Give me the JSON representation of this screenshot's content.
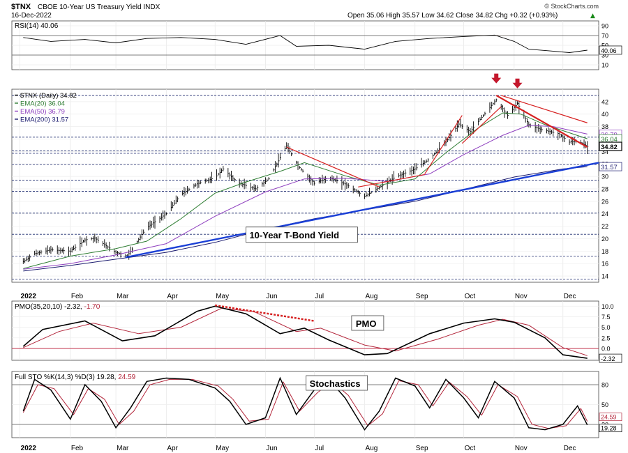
{
  "header": {
    "symbol": "$TNX",
    "description": "CBOE 10-Year US Treasury Yield INDX",
    "date": "16-Dec-2022",
    "ohlc_text": "Open 35.06  High 35.57  Low 34.62  Close 34.82  Chg +0.32 (+0.93%)",
    "change_arrow": "▲",
    "watermark": "© StockCharts.com"
  },
  "colors": {
    "price_bar": "#000000",
    "ema20": "#2e7d32",
    "ema50": "#8e3fbf",
    "ema200": "#1a1a6e",
    "pmo": "#000000",
    "pmo_signal": "#b3263b",
    "sto_k": "#000000",
    "sto_d": "#b3263b",
    "trend_blue": "#1a3fd6",
    "trend_red": "#d62020",
    "arrow": "#c4172c",
    "grid_dashed": "#1c2a6e",
    "rsi_fill": "#9b8a7c"
  },
  "chart_data": [
    {
      "type": "line",
      "panel": "rsi",
      "legend": "RSI(14) 40.06",
      "last_value_label": "40.06",
      "ylim": [
        0,
        100
      ],
      "yticks": [
        10,
        30,
        50,
        70,
        90
      ],
      "series": [
        {
          "name": "RSI(14)",
          "x": [
            "2022-01-03",
            "2022-01-20",
            "2022-02-10",
            "2022-03-01",
            "2022-03-20",
            "2022-04-10",
            "2022-05-01",
            "2022-05-20",
            "2022-06-10",
            "2022-06-20",
            "2022-07-10",
            "2022-08-01",
            "2022-08-20",
            "2022-09-10",
            "2022-10-01",
            "2022-10-20",
            "2022-11-01",
            "2022-11-10",
            "2022-11-25",
            "2022-12-05",
            "2022-12-16"
          ],
          "values": [
            66,
            58,
            62,
            55,
            64,
            66,
            62,
            52,
            70,
            48,
            50,
            42,
            58,
            64,
            68,
            71,
            58,
            42,
            38,
            35,
            40.06
          ]
        }
      ]
    },
    {
      "type": "line",
      "panel": "price",
      "legend": [
        {
          "label": "$TNX (Daily) 34.82",
          "color": "#000000"
        },
        {
          "label": "EMA(20) 36.04",
          "color": "#2e7d32"
        },
        {
          "label": "EMA(50) 36.79",
          "color": "#8e3fbf"
        },
        {
          "label": "EMA(200) 31.57",
          "color": "#1a1a6e"
        }
      ],
      "annotation": "10-Year T-Bond Yield",
      "ylim": [
        13,
        44
      ],
      "yticks": [
        14,
        16,
        18,
        20,
        22,
        24,
        26,
        28,
        30,
        32,
        34,
        36,
        38,
        40,
        42
      ],
      "value_labels": [
        {
          "text": "36.79",
          "value": 36.79,
          "color": "#8e3fbf"
        },
        {
          "text": "36.04",
          "value": 36.04,
          "color": "#2e7d32"
        },
        {
          "text": "34.82",
          "value": 34.82,
          "color": "#000000",
          "bold": true
        },
        {
          "text": "31.57",
          "value": 31.57,
          "color": "#1a1a6e"
        }
      ],
      "horizontal_levels": [
        13.5,
        17.2,
        20.7,
        24.1,
        27.6,
        29.4,
        31.9,
        33.7,
        34.1,
        36.3,
        43.0
      ],
      "series": [
        {
          "name": "$TNX (Daily)",
          "x": [
            "2022-01-03",
            "2022-01-10",
            "2022-01-20",
            "2022-02-01",
            "2022-02-10",
            "2022-02-16",
            "2022-03-01",
            "2022-03-08",
            "2022-03-20",
            "2022-04-01",
            "2022-04-10",
            "2022-04-20",
            "2022-05-01",
            "2022-05-06",
            "2022-05-15",
            "2022-05-26",
            "2022-06-03",
            "2022-06-14",
            "2022-06-22",
            "2022-07-01",
            "2022-07-10",
            "2022-07-20",
            "2022-08-01",
            "2022-08-10",
            "2022-08-20",
            "2022-09-01",
            "2022-09-10",
            "2022-09-20",
            "2022-09-28",
            "2022-10-05",
            "2022-10-14",
            "2022-10-21",
            "2022-10-28",
            "2022-11-03",
            "2022-11-10",
            "2022-11-18",
            "2022-11-28",
            "2022-12-05",
            "2022-12-10",
            "2022-12-16"
          ],
          "values": [
            16.3,
            17.6,
            18.2,
            18.0,
            19.8,
            20.1,
            17.8,
            17.2,
            21.8,
            24.0,
            27.1,
            28.8,
            29.8,
            31.2,
            29.0,
            28.0,
            29.6,
            34.9,
            31.4,
            28.9,
            29.8,
            28.8,
            26.8,
            28.2,
            29.9,
            31.2,
            32.8,
            35.5,
            38.4,
            37.2,
            40.1,
            42.3,
            39.8,
            41.7,
            38.3,
            37.5,
            36.9,
            35.5,
            35.7,
            34.82
          ]
        },
        {
          "name": "EMA(20)",
          "x": [
            "2022-01-03",
            "2022-02-01",
            "2022-03-01",
            "2022-03-20",
            "2022-04-10",
            "2022-05-01",
            "2022-05-20",
            "2022-06-10",
            "2022-06-25",
            "2022-07-20",
            "2022-08-10",
            "2022-09-01",
            "2022-09-20",
            "2022-10-10",
            "2022-10-25",
            "2022-11-05",
            "2022-11-20",
            "2022-12-16"
          ],
          "values": [
            15.2,
            17.2,
            18.4,
            19.6,
            23.2,
            27.3,
            29.1,
            30.8,
            32.2,
            30.1,
            28.6,
            29.6,
            33.8,
            37.8,
            40.2,
            40.0,
            38.3,
            36.04
          ]
        },
        {
          "name": "EMA(50)",
          "x": [
            "2022-01-03",
            "2022-02-01",
            "2022-03-01",
            "2022-04-01",
            "2022-05-01",
            "2022-06-01",
            "2022-06-25",
            "2022-07-20",
            "2022-08-15",
            "2022-09-10",
            "2022-10-01",
            "2022-10-25",
            "2022-11-10",
            "2022-11-25",
            "2022-12-16"
          ],
          "values": [
            15.1,
            16.0,
            17.4,
            19.2,
            23.6,
            27.5,
            29.6,
            29.7,
            29.2,
            30.4,
            33.5,
            36.6,
            38.2,
            38.0,
            36.79
          ]
        },
        {
          "name": "EMA(200)",
          "x": [
            "2022-01-03",
            "2022-02-01",
            "2022-03-01",
            "2022-04-01",
            "2022-05-01",
            "2022-06-01",
            "2022-07-01",
            "2022-08-01",
            "2022-09-01",
            "2022-10-01",
            "2022-11-01",
            "2022-12-01",
            "2022-12-16"
          ],
          "values": [
            14.8,
            15.7,
            16.7,
            17.8,
            19.4,
            21.5,
            23.2,
            24.6,
            26.0,
            27.9,
            29.9,
            31.2,
            31.57
          ]
        }
      ],
      "trendlines": [
        {
          "color": "#1a3fd6",
          "width": 2.4,
          "points": [
            [
              "2022-03-07",
              17.0
            ],
            [
              "2022-12-23",
              32.2
            ]
          ]
        },
        {
          "color": "#d62020",
          "width": 1.2,
          "points": [
            [
              "2022-06-14",
              34.7
            ],
            [
              "2022-08-10",
              28.3
            ]
          ]
        },
        {
          "color": "#d62020",
          "width": 1.2,
          "points": [
            [
              "2022-07-28",
              28.3
            ],
            [
              "2022-09-07",
              30.3
            ]
          ]
        },
        {
          "color": "#d62020",
          "width": 1.2,
          "points": [
            [
              "2022-09-07",
              30.4
            ],
            [
              "2022-09-30",
              39.8
            ]
          ]
        },
        {
          "color": "#d62020",
          "width": 1.2,
          "points": [
            [
              "2022-09-30",
              35.3
            ],
            [
              "2022-10-24",
              41.2
            ]
          ]
        },
        {
          "color": "#d62020",
          "width": 2.2,
          "points": [
            [
              "2022-10-21",
              43.0
            ],
            [
              "2022-12-16",
              34.7
            ]
          ]
        },
        {
          "color": "#d62020",
          "width": 1.2,
          "points": [
            [
              "2022-10-24",
              43.0
            ],
            [
              "2022-12-16",
              38.6
            ]
          ]
        }
      ],
      "arrows": [
        [
          "2022-10-21",
          43.6
        ],
        [
          "2022-11-03",
          42.8
        ]
      ]
    },
    {
      "type": "line",
      "panel": "pmo",
      "legend": "PMO(35,20,10) -2.32, -1.70",
      "annotation": "PMO",
      "last_value_label": "-2.32",
      "ylim": [
        -2.8,
        11.2
      ],
      "yticks": [
        -2.5,
        0.0,
        2.5,
        5.0,
        7.5,
        10.0
      ],
      "zero_line_color": "#c0324a",
      "series": [
        {
          "name": "PMO",
          "x": [
            "2022-01-03",
            "2022-01-15",
            "2022-02-10",
            "2022-03-05",
            "2022-03-25",
            "2022-04-20",
            "2022-05-01",
            "2022-05-20",
            "2022-06-10",
            "2022-06-25",
            "2022-07-10",
            "2022-08-01",
            "2022-08-15",
            "2022-09-10",
            "2022-10-01",
            "2022-10-20",
            "2022-11-01",
            "2022-11-20",
            "2022-12-01",
            "2022-12-16"
          ],
          "values": [
            0.5,
            4.5,
            6.5,
            1.8,
            3.0,
            8.8,
            10.0,
            8.2,
            3.5,
            4.8,
            2.0,
            -1.5,
            -1.2,
            3.5,
            6.0,
            7.0,
            6.2,
            2.5,
            -1.5,
            -2.32
          ]
        },
        {
          "name": "Signal",
          "x": [
            "2022-01-03",
            "2022-01-25",
            "2022-02-15",
            "2022-03-15",
            "2022-04-10",
            "2022-05-05",
            "2022-05-25",
            "2022-06-20",
            "2022-07-05",
            "2022-08-01",
            "2022-08-20",
            "2022-09-15",
            "2022-10-10",
            "2022-10-25",
            "2022-11-10",
            "2022-12-01",
            "2022-12-16"
          ],
          "values": [
            0.2,
            4.0,
            6.0,
            3.5,
            5.0,
            9.5,
            8.7,
            4.0,
            4.8,
            0.8,
            -0.6,
            2.2,
            5.5,
            6.9,
            5.5,
            0.2,
            -1.7
          ]
        }
      ],
      "trendlines": [
        {
          "color": "#d62020",
          "width": 2.5,
          "dashed": true,
          "points": [
            [
              "2022-05-01",
              10.2
            ],
            [
              "2022-07-01",
              6.5
            ]
          ]
        }
      ]
    },
    {
      "type": "line",
      "panel": "stochastics",
      "legend": "Full STO %K(14,3) %D(3) 19.28, 24.59",
      "annotation": "Stochastics",
      "last_value_label": "19.28",
      "last_value_label_2": "24.59",
      "ylim": [
        0,
        100
      ],
      "yticks": [
        20,
        50,
        80
      ],
      "series": [
        {
          "name": "%K",
          "x": [
            "2022-01-03",
            "2022-01-10",
            "2022-01-20",
            "2022-02-01",
            "2022-02-10",
            "2022-02-20",
            "2022-03-01",
            "2022-03-10",
            "2022-03-20",
            "2022-04-01",
            "2022-04-15",
            "2022-05-01",
            "2022-05-10",
            "2022-05-20",
            "2022-06-01",
            "2022-06-10",
            "2022-06-20",
            "2022-07-01",
            "2022-07-10",
            "2022-07-20",
            "2022-08-01",
            "2022-08-10",
            "2022-08-20",
            "2022-09-01",
            "2022-09-10",
            "2022-09-20",
            "2022-10-01",
            "2022-10-10",
            "2022-10-20",
            "2022-11-01",
            "2022-11-10",
            "2022-11-20",
            "2022-12-01",
            "2022-12-10",
            "2022-12-16"
          ],
          "values": [
            40,
            88,
            72,
            28,
            80,
            55,
            15,
            45,
            85,
            90,
            88,
            75,
            55,
            20,
            30,
            90,
            35,
            72,
            88,
            60,
            12,
            40,
            90,
            78,
            45,
            88,
            60,
            30,
            85,
            60,
            15,
            12,
            20,
            48,
            19.28
          ]
        },
        {
          "name": "%D",
          "x": [
            "2022-01-03",
            "2022-01-12",
            "2022-01-22",
            "2022-02-03",
            "2022-02-12",
            "2022-02-22",
            "2022-03-03",
            "2022-03-12",
            "2022-03-22",
            "2022-04-03",
            "2022-04-17",
            "2022-05-03",
            "2022-05-12",
            "2022-05-22",
            "2022-06-03",
            "2022-06-12",
            "2022-06-22",
            "2022-07-03",
            "2022-07-12",
            "2022-07-22",
            "2022-08-03",
            "2022-08-12",
            "2022-08-22",
            "2022-09-03",
            "2022-09-12",
            "2022-09-22",
            "2022-10-03",
            "2022-10-12",
            "2022-10-22",
            "2022-11-03",
            "2022-11-12",
            "2022-11-22",
            "2022-12-03",
            "2022-12-12",
            "2022-12-16"
          ],
          "values": [
            38,
            80,
            74,
            35,
            74,
            58,
            20,
            40,
            80,
            88,
            88,
            78,
            58,
            25,
            28,
            84,
            40,
            68,
            85,
            64,
            18,
            36,
            86,
            80,
            48,
            84,
            62,
            34,
            80,
            62,
            20,
            14,
            18,
            44,
            24.59
          ]
        }
      ]
    },
    {
      "type": "axis",
      "x_ticks": [
        {
          "label": "2022",
          "date": "2022-01-01",
          "bold": true
        },
        {
          "label": "Feb",
          "date": "2022-02-01"
        },
        {
          "label": "Mar",
          "date": "2022-03-01"
        },
        {
          "label": "Apr",
          "date": "2022-04-01"
        },
        {
          "label": "May",
          "date": "2022-05-01"
        },
        {
          "label": "Jun",
          "date": "2022-06-01"
        },
        {
          "label": "Jul",
          "date": "2022-07-01"
        },
        {
          "label": "Aug",
          "date": "2022-08-01"
        },
        {
          "label": "Sep",
          "date": "2022-09-01"
        },
        {
          "label": "Oct",
          "date": "2022-10-01"
        },
        {
          "label": "Nov",
          "date": "2022-11-01"
        },
        {
          "label": "Dec",
          "date": "2022-12-01"
        }
      ],
      "xlim": [
        "2021-12-27",
        "2022-12-23"
      ]
    }
  ]
}
